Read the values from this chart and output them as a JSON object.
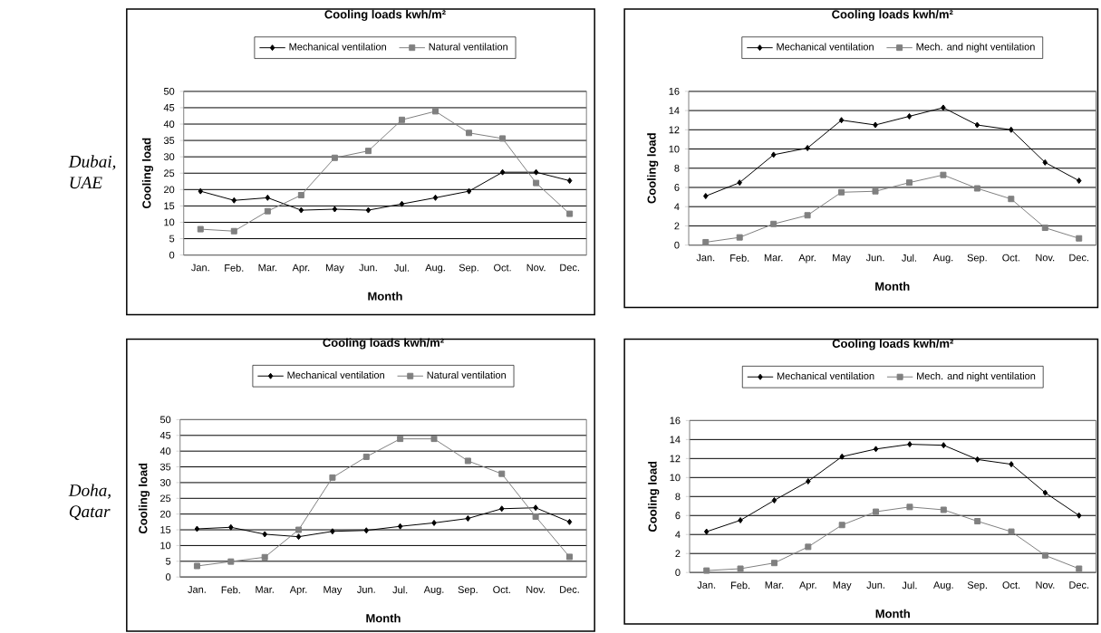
{
  "chart_data": [
    {
      "type": "line",
      "title": "Cooling loads kwh/m²",
      "xlabel": "Month",
      "ylabel": "Cooling load",
      "annotations": [
        "Dubai, UAE"
      ],
      "categories": [
        "Jan.",
        "Feb.",
        "Mar.",
        "Apr.",
        "May",
        "Jun.",
        "Jul.",
        "Aug.",
        "Sep.",
        "Oct.",
        "Nov.",
        "Dec."
      ],
      "series": [
        {
          "name": "Mechanical ventilation",
          "color": "#000000",
          "marker": "diamond",
          "values": [
            19.5,
            16.7,
            17.5,
            13.7,
            14,
            13.7,
            15.6,
            17.5,
            19.5,
            25.3,
            25.3,
            22.7
          ]
        },
        {
          "name": "Natural ventilation",
          "color": "#808080",
          "marker": "square",
          "values": [
            7.9,
            7.3,
            13.4,
            18.3,
            29.7,
            31.8,
            41.3,
            43.9,
            37.3,
            35.6,
            22,
            12.6
          ]
        }
      ],
      "ylim": [
        0,
        50
      ],
      "yticks": [
        0,
        5,
        10,
        15,
        20,
        25,
        30,
        35,
        40,
        45,
        50
      ],
      "grid": "y",
      "legend": "top"
    },
    {
      "type": "line",
      "title": "Cooling loads kwh/m²",
      "xlabel": "Month",
      "ylabel": "Cooling load",
      "categories": [
        "Jan.",
        "Feb.",
        "Mar.",
        "Apr.",
        "May",
        "Jun.",
        "Jul.",
        "Aug.",
        "Sep.",
        "Oct.",
        "Nov.",
        "Dec."
      ],
      "series": [
        {
          "name": "Mechanical ventilation",
          "color": "#000000",
          "marker": "diamond",
          "values": [
            5.1,
            6.5,
            9.4,
            10.1,
            13,
            12.5,
            13.4,
            14.3,
            12.5,
            12,
            8.6,
            6.7
          ]
        },
        {
          "name": "Mech. and night ventilation",
          "color": "#808080",
          "marker": "square",
          "values": [
            0.3,
            0.8,
            2.2,
            3.1,
            5.5,
            5.6,
            6.5,
            7.3,
            5.9,
            4.8,
            1.8,
            0.7
          ]
        }
      ],
      "ylim": [
        0,
        16
      ],
      "yticks": [
        0,
        2,
        4,
        6,
        8,
        10,
        12,
        14,
        16
      ],
      "grid": "y",
      "legend": "top"
    },
    {
      "type": "line",
      "title": "Cooling loads kwh/m²",
      "xlabel": "Month",
      "ylabel": "Cooling load",
      "annotations": [
        "Doha, Qatar"
      ],
      "categories": [
        "Jan.",
        "Feb.",
        "Mar.",
        "Apr.",
        "May",
        "Jun.",
        "Jul.",
        "Aug.",
        "Sep.",
        "Oct.",
        "Nov.",
        "Dec."
      ],
      "series": [
        {
          "name": "Mechanical ventilation",
          "color": "#000000",
          "marker": "diamond",
          "values": [
            15.3,
            15.8,
            13.6,
            12.8,
            14.5,
            14.8,
            16.1,
            17.2,
            18.6,
            21.7,
            22,
            17.5
          ]
        },
        {
          "name": "Natural ventilation",
          "color": "#808080",
          "marker": "square",
          "values": [
            3.5,
            4.9,
            6.3,
            15,
            31.6,
            38.2,
            43.9,
            43.9,
            36.9,
            32.8,
            19.2,
            6.4
          ]
        }
      ],
      "ylim": [
        0,
        50
      ],
      "yticks": [
        0,
        5,
        10,
        15,
        20,
        25,
        30,
        35,
        40,
        45,
        50
      ],
      "grid": "y",
      "legend": "top"
    },
    {
      "type": "line",
      "title": "Cooling loads kwh/m²",
      "xlabel": "Month",
      "ylabel": "Cooling load",
      "categories": [
        "Jan.",
        "Feb.",
        "Mar.",
        "Apr.",
        "May",
        "Jun.",
        "Jul.",
        "Aug.",
        "Sep.",
        "Oct.",
        "Nov.",
        "Dec."
      ],
      "series": [
        {
          "name": "Mechanical ventilation",
          "color": "#000000",
          "marker": "diamond",
          "values": [
            4.3,
            5.5,
            7.6,
            9.6,
            12.2,
            13,
            13.5,
            13.4,
            11.9,
            11.4,
            8.4,
            6
          ]
        },
        {
          "name": "Mech. and night ventilation",
          "color": "#808080",
          "marker": "square",
          "values": [
            0.2,
            0.4,
            1,
            2.7,
            5,
            6.4,
            6.9,
            6.6,
            5.4,
            4.3,
            1.8,
            0.4
          ]
        }
      ],
      "ylim": [
        0,
        16
      ],
      "yticks": [
        0,
        2,
        4,
        6,
        8,
        10,
        12,
        14,
        16
      ],
      "grid": "y",
      "legend": "top"
    }
  ]
}
